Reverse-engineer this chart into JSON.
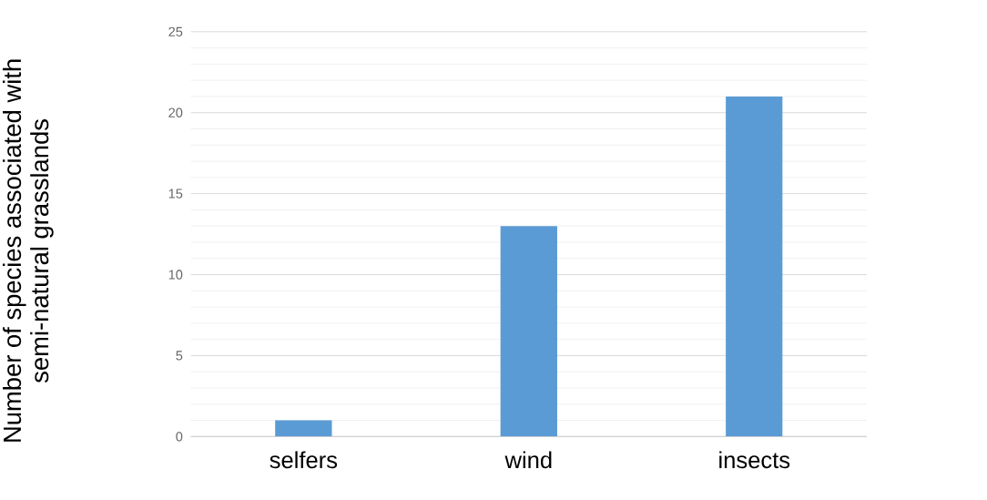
{
  "chart_data": {
    "type": "bar",
    "ylabel": "Number of species associated with semi-natural grasslands",
    "categories": [
      "selfers",
      "wind",
      "insects"
    ],
    "values": [
      1,
      13,
      21
    ],
    "color": "#5b9bd5",
    "ylim": [
      0,
      25
    ],
    "yticks": [
      0,
      5,
      10,
      15,
      20,
      25
    ],
    "grid": "y"
  }
}
